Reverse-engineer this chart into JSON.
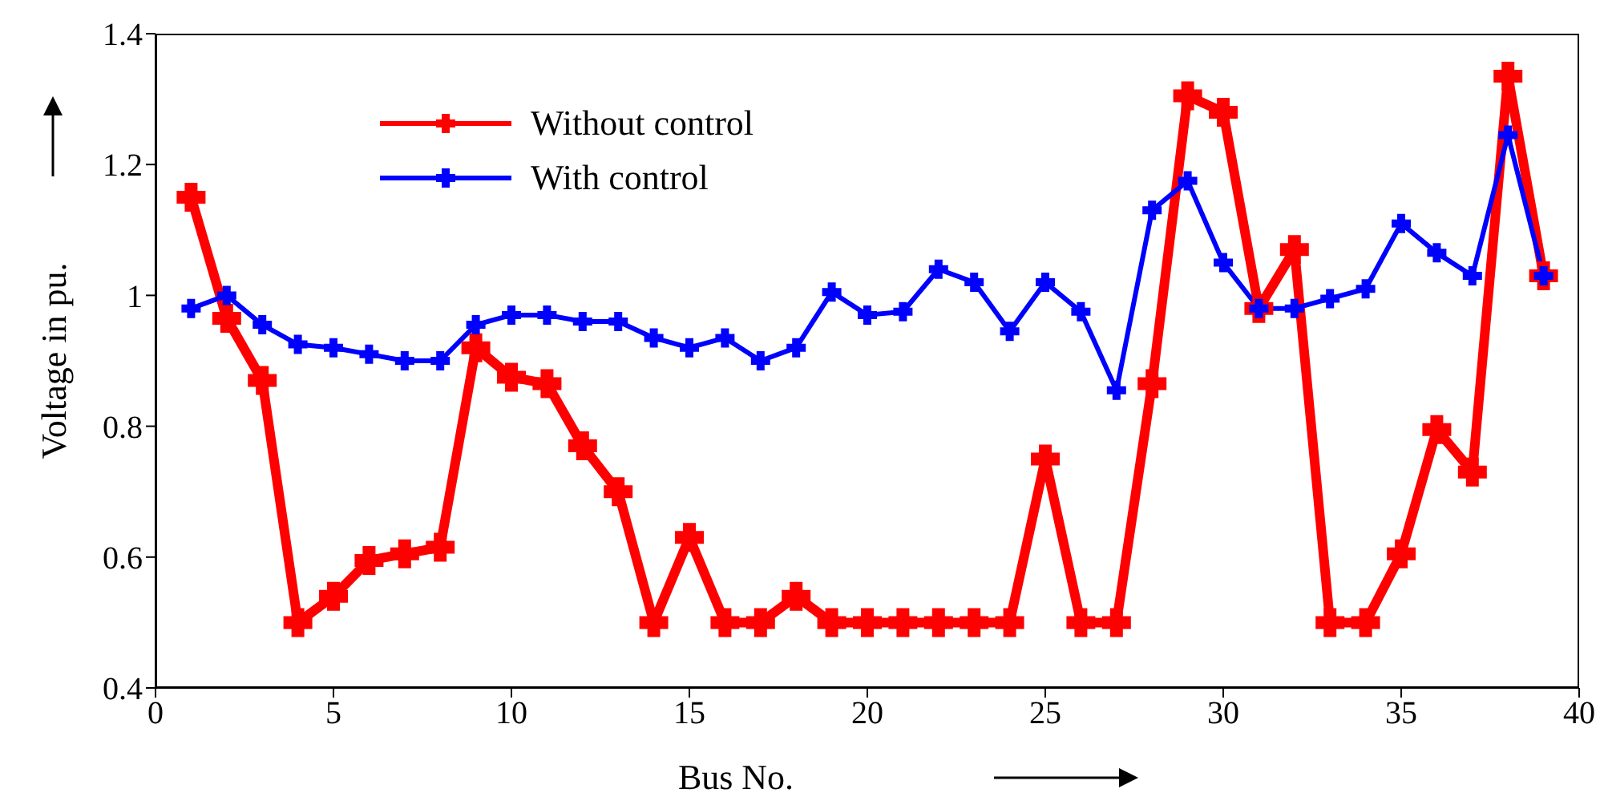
{
  "chart_data": {
    "type": "line",
    "xlabel": "Bus  No.",
    "ylabel": "Voltage in pu.",
    "x": [
      1,
      2,
      3,
      4,
      5,
      6,
      7,
      8,
      9,
      10,
      11,
      12,
      13,
      14,
      15,
      16,
      17,
      18,
      19,
      20,
      21,
      22,
      23,
      24,
      25,
      26,
      27,
      28,
      29,
      30,
      31,
      32,
      33,
      34,
      35,
      36,
      37,
      38,
      39
    ],
    "series": [
      {
        "name": "Without control",
        "color": "#ff0000",
        "values": [
          1.15,
          0.965,
          0.87,
          0.5,
          0.54,
          0.595,
          0.605,
          0.615,
          0.92,
          0.875,
          0.865,
          0.77,
          0.7,
          0.5,
          0.63,
          0.5,
          0.5,
          0.54,
          0.5,
          0.5,
          0.5,
          0.5,
          0.5,
          0.5,
          0.75,
          0.5,
          0.5,
          0.865,
          1.305,
          1.28,
          0.98,
          1.07,
          0.5,
          0.5,
          0.605,
          0.795,
          0.73,
          1.335,
          1.03
        ]
      },
      {
        "name": "With control",
        "color": "#0000ff",
        "values": [
          0.98,
          1.0,
          0.955,
          0.925,
          0.92,
          0.91,
          0.9,
          0.9,
          0.955,
          0.97,
          0.97,
          0.96,
          0.96,
          0.935,
          0.92,
          0.935,
          0.9,
          0.92,
          1.005,
          0.97,
          0.975,
          1.04,
          1.02,
          0.945,
          1.02,
          0.975,
          0.855,
          1.13,
          1.175,
          1.05,
          0.98,
          0.98,
          0.995,
          1.01,
          1.11,
          1.065,
          1.03,
          1.245,
          1.03
        ]
      }
    ],
    "xlim": [
      0,
      40
    ],
    "xticks": [
      0,
      5,
      10,
      15,
      20,
      25,
      30,
      35,
      40
    ],
    "ylim": [
      0.4,
      1.4
    ],
    "yticks": [
      0.4,
      0.6,
      0.8,
      1,
      1.2,
      1.4
    ],
    "grid": false,
    "legend": "top left",
    "marker": "cross",
    "line_style": "solid"
  }
}
